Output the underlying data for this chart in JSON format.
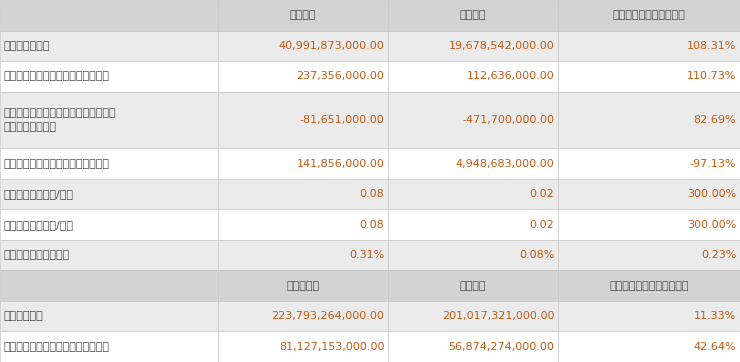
{
  "header1": [
    "",
    "本报告期",
    "上年同期",
    "本报告期比上年同期增减"
  ],
  "header2": [
    "",
    "本报告期末",
    "上年度末",
    "本报告期末比上年度末增减"
  ],
  "rows_top": [
    [
      "营业收入（元）",
      "40,991,873,000.00",
      "19,678,542,000.00",
      "108.31%"
    ],
    [
      "归属于上市公司股东的净利润（元）",
      "237,356,000.00",
      "112,636,000.00",
      "110.73%"
    ],
    [
      "归属于上市公司股东的扣除非经常性损\n益的净利润（元）",
      "-81,651,000.00",
      "-471,700,000.00",
      "82.69%"
    ],
    [
      "经营活动产生的现金流量净额（元）",
      "141,856,000.00",
      "4,948,683,000.00",
      "-97.13%"
    ],
    [
      "基本每股收益（元/股）",
      "0.08",
      "0.02",
      "300.00%"
    ],
    [
      "稀释每股收益（元/股）",
      "0.08",
      "0.02",
      "300.00%"
    ],
    [
      "加权平均净资产收益率",
      "0.31%",
      "0.08%",
      "0.23%"
    ]
  ],
  "rows_bottom": [
    [
      "总资产（元）",
      "223,793,264,000.00",
      "201,017,321,000.00",
      "11.33%"
    ],
    [
      "归属于上市公司股东的净资产（元）",
      "81,127,153,000.00",
      "56,874,274,000.00",
      "42.64%"
    ]
  ],
  "bg_header": "#d3d3d3",
  "bg_row_odd": "#ebebeb",
  "bg_row_even": "#ffffff",
  "text_color_label": "#4a4a4a",
  "text_color_value": "#c55a11",
  "border_color": "#c8c8c8",
  "figsize": [
    7.4,
    3.62
  ],
  "dpi": 100
}
